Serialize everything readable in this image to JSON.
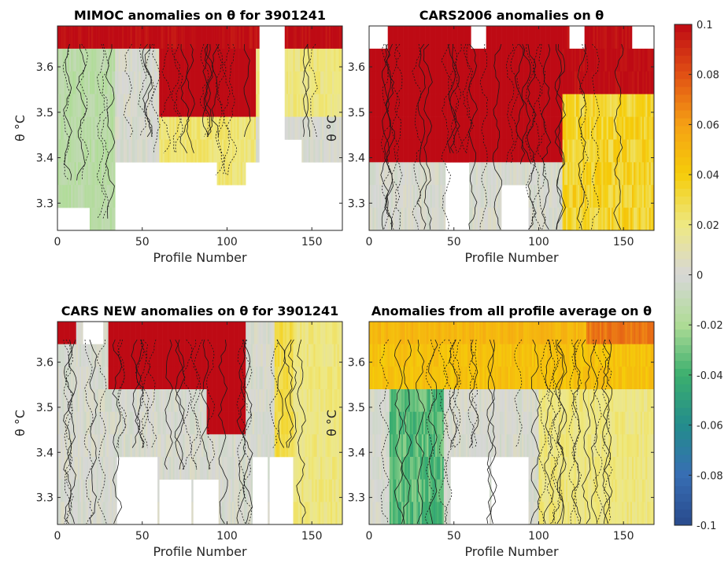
{
  "chart_data": {
    "type": "heatmap",
    "colorbar": {
      "range": [
        -0.1,
        0.1
      ],
      "ticks": [
        "0.1",
        "0.08",
        "0.06",
        "0.04",
        "0.02",
        "0",
        "-0.02",
        "-0.04",
        "-0.06",
        "-0.08",
        "-0.1"
      ]
    },
    "panels": [
      {
        "title": "MIMOC anomalies on θ  for 3901241",
        "xlabel": "Profile Number",
        "ylabel": "θ °C",
        "xlim": [
          0,
          168
        ],
        "ylim": [
          3.24,
          3.69
        ],
        "xticks": [
          "0",
          "50",
          "100",
          "150"
        ],
        "yticks": [
          "3.3",
          "3.4",
          "3.5",
          "3.6"
        ],
        "pattern": "mimoc"
      },
      {
        "title": "CARS2006 anomalies on θ",
        "xlabel": "Profile Number",
        "ylabel": "θ °C",
        "xlim": [
          0,
          168
        ],
        "ylim": [
          3.24,
          3.69
        ],
        "xticks": [
          "0",
          "50",
          "100",
          "150"
        ],
        "yticks": [
          "3.3",
          "3.4",
          "3.5",
          "3.6"
        ],
        "pattern": "cars2006"
      },
      {
        "title": "CARS NEW anomalies on θ for 3901241",
        "xlabel": "Profile Number",
        "ylabel": "θ °C",
        "xlim": [
          0,
          168
        ],
        "ylim": [
          3.24,
          3.69
        ],
        "xticks": [
          "0",
          "50",
          "100",
          "150"
        ],
        "yticks": [
          "3.3",
          "3.4",
          "3.5",
          "3.6"
        ],
        "pattern": "carsnew"
      },
      {
        "title": "Anomalies from all profile average on θ",
        "xlabel": "Profile Number",
        "ylabel": "θ °C",
        "xlim": [
          0,
          168
        ],
        "ylim": [
          3.24,
          3.69
        ],
        "xticks": [
          "0",
          "50",
          "100",
          "150"
        ],
        "yticks": [
          "3.3",
          "3.4",
          "3.5",
          "3.6"
        ],
        "pattern": "average"
      }
    ]
  }
}
